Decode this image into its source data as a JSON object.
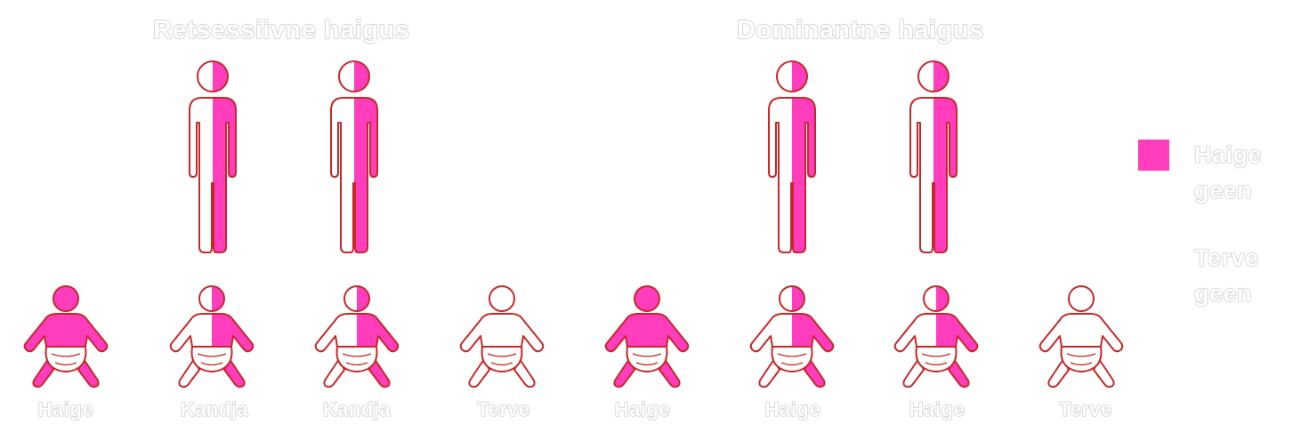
{
  "titles": {
    "recessive": "Retsessiivne haigus",
    "dominant": "Dominantne haigus"
  },
  "colors": {
    "disease_gene": "#ff3dbd",
    "outline": "#c62828",
    "healthy": "#ffffff"
  },
  "parents": [
    {
      "group": "recessive",
      "genotype": "carrier"
    },
    {
      "group": "recessive",
      "genotype": "carrier"
    },
    {
      "group": "dominant",
      "genotype": "carrier"
    },
    {
      "group": "dominant",
      "genotype": "carrier"
    }
  ],
  "children": [
    {
      "label": "Haige",
      "genotype": "affected"
    },
    {
      "label": "Kandja",
      "genotype": "carrier"
    },
    {
      "label": "Kandja",
      "genotype": "carrier"
    },
    {
      "label": "Terve",
      "genotype": "healthy"
    },
    {
      "label": "Haige",
      "genotype": "affected"
    },
    {
      "label": "Haige",
      "genotype": "carrier"
    },
    {
      "label": "Haige",
      "genotype": "carrier"
    },
    {
      "label": "Terve",
      "genotype": "healthy"
    }
  ],
  "legend": {
    "disease_label": "Haige geen",
    "healthy_label": "Terve geen"
  }
}
